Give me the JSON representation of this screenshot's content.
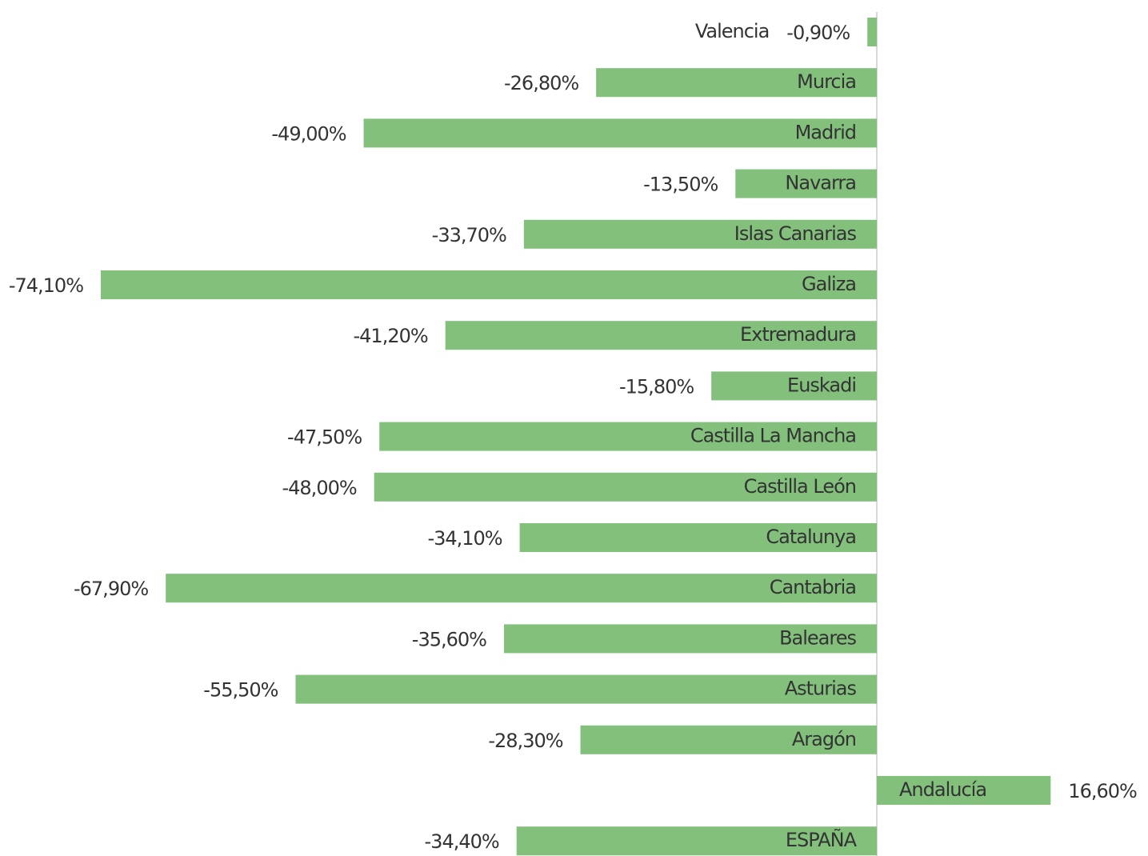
{
  "chart_data": {
    "type": "hbar",
    "color": "#82c07c",
    "categories": [
      "Valencia",
      "Murcia",
      "Madrid",
      "Navarra",
      "Islas Canarias",
      "Galiza",
      "Extremadura",
      "Euskadi",
      "Castilla La Mancha",
      "Castilla León",
      "Catalunya",
      "Cantabria",
      "Baleares",
      "Asturias",
      "Aragón",
      "Andalucía",
      "ESPAÑA"
    ],
    "values": [
      -0.9,
      -26.8,
      -49.0,
      -13.5,
      -33.7,
      -74.1,
      -41.2,
      -15.8,
      -47.5,
      -48.0,
      -34.1,
      -67.9,
      -35.6,
      -55.5,
      -28.3,
      16.6,
      -34.4
    ],
    "value_labels": [
      "-0,90%",
      "-26,80%",
      "-49,00%",
      "-13,50%",
      "-33,70%",
      "-74,10%",
      "-41,20%",
      "-15,80%",
      "-47,50%",
      "-48,00%",
      "-34,10%",
      "-67,90%",
      "-35,60%",
      "-55,50%",
      "-28,30%",
      "16,60%",
      "-34,40%"
    ]
  }
}
